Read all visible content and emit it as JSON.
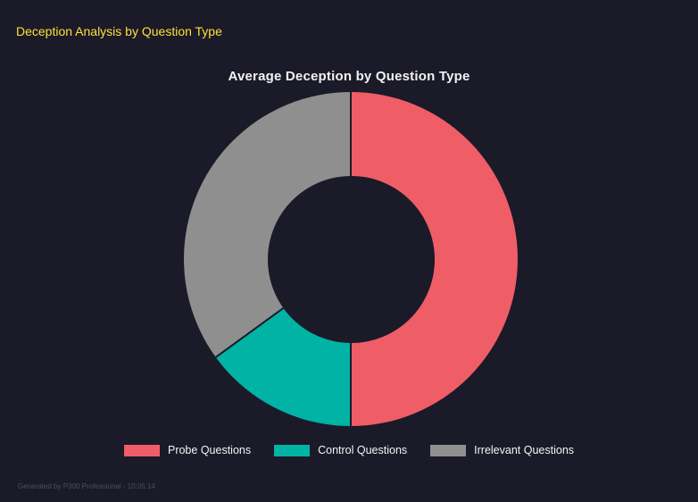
{
  "header": {
    "title": "Deception Analysis by Question Type"
  },
  "footer": {
    "text": "Generated by P300 Professional - 10:05:14"
  },
  "colors": {
    "background": "#1a1a29",
    "header_yellow": "#ffe135",
    "chart_title": "#f2f2f2",
    "legend_text": "#f5f5f5",
    "footer_text": "#4e4e5c"
  },
  "chart_data": {
    "type": "pie",
    "subtype": "donut",
    "title": "Average Deception by Question Type",
    "labels": [
      "Probe Questions",
      "Control Questions",
      "Irrelevant Questions"
    ],
    "values": [
      50,
      15,
      35
    ],
    "colors": [
      "#ef5d67",
      "#00b3a4",
      "#8f8f8f"
    ],
    "donut_hole_ratio": 0.5,
    "start_angle_deg": 0,
    "direction": "clockwise",
    "legend_position": "bottom"
  }
}
